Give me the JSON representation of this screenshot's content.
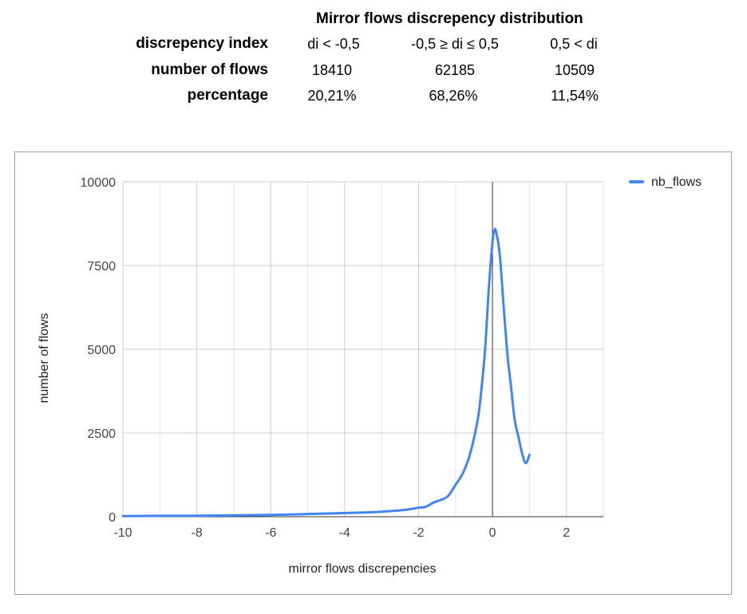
{
  "summary": {
    "title": "Mirror flows discrepency distribution",
    "rows": [
      {
        "label": "discrepency index",
        "cells": [
          "di < -0,5",
          "-0,5 ≥ di ≤ 0,5",
          "0,5 < di"
        ]
      },
      {
        "label": "number of flows",
        "cells": [
          "18410",
          "62185",
          "10509"
        ]
      },
      {
        "label": "percentage",
        "cells": [
          "20,21%",
          "68,26%",
          "11,54%"
        ]
      }
    ]
  },
  "chart_data": {
    "type": "line",
    "title": "",
    "xlabel": "mirror flows discrepencies",
    "ylabel": "number of flows",
    "xlim": [
      -10,
      3
    ],
    "ylim": [
      0,
      10000
    ],
    "x_ticks": [
      -10,
      -8,
      -6,
      -4,
      -2,
      0,
      2
    ],
    "y_ticks": [
      0,
      2500,
      5000,
      7500,
      10000
    ],
    "grid": true,
    "legend_position": "top-right",
    "series": [
      {
        "name": "nb_flows",
        "color": "#4285f4",
        "x": [
          -10,
          -9,
          -8,
          -7,
          -6,
          -5.5,
          -5,
          -4.5,
          -4,
          -3.5,
          -3,
          -2.5,
          -2.2,
          -2,
          -1.8,
          -1.6,
          -1.4,
          -1.2,
          -1.0,
          -0.8,
          -0.6,
          -0.4,
          -0.3,
          -0.2,
          -0.1,
          0,
          0.05,
          0.1,
          0.2,
          0.3,
          0.4,
          0.5,
          0.6,
          0.7,
          0.8,
          0.9,
          1.0
        ],
        "y": [
          20,
          25,
          30,
          40,
          55,
          65,
          80,
          95,
          110,
          125,
          150,
          190,
          230,
          270,
          300,
          420,
          500,
          620,
          950,
          1300,
          1900,
          2900,
          3800,
          5000,
          6800,
          8200,
          8550,
          8500,
          7800,
          6300,
          4900,
          3900,
          2900,
          2400,
          1900,
          1600,
          1850
        ]
      }
    ]
  }
}
